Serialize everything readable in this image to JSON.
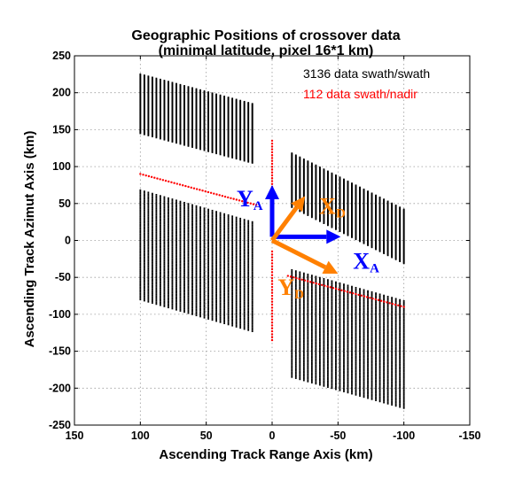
{
  "chart_data": {
    "type": "scatter",
    "title": "Geographic Positions of crossover data",
    "subtitle": "(minimal latitude, pixel 16*1 km)",
    "xlabel": "Ascending Track Range Axis (km)",
    "ylabel": "Ascending Track Azimut Axis (km)",
    "xlim": [
      150,
      -150
    ],
    "ylim": [
      -250,
      250
    ],
    "x_reversed": true,
    "grid": true,
    "xticks": [
      "150",
      "100",
      "50",
      "0",
      "-50",
      "-100",
      "-150"
    ],
    "yticks": [
      "250",
      "200",
      "150",
      "100",
      "50",
      "0",
      "-50",
      "-100",
      "-150",
      "-200",
      "-250"
    ],
    "legend_position": "top-right",
    "series": [
      {
        "name": "3136 data swath/swath",
        "color": "#000000",
        "marker": "dot",
        "regions": [
          {
            "corners": [
              [
                100,
                225
              ],
              [
                15,
                185
              ],
              [
                15,
                105
              ],
              [
                100,
                145
              ]
            ]
          },
          {
            "corners": [
              [
                100,
                68
              ],
              [
                15,
                25
              ],
              [
                15,
                -120
              ],
              [
                100,
                -80
              ]
            ]
          },
          {
            "corners": [
              [
                -15,
                118
              ],
              [
                -100,
                42
              ],
              [
                -100,
                -30
              ],
              [
                -15,
                45
              ]
            ]
          },
          {
            "corners": [
              [
                -15,
                -40
              ],
              [
                -100,
                -82
              ],
              [
                -100,
                -228
              ],
              [
                -15,
                -185
              ]
            ]
          }
        ]
      },
      {
        "name": "112 data swath/nadir",
        "color": "#ff0000",
        "marker": "dot",
        "lines": [
          {
            "from": [
              100,
              90
            ],
            "to": [
              12,
              48
            ]
          },
          {
            "from": [
              -12,
              -48
            ],
            "to": [
              -100,
              -90
            ]
          },
          {
            "from": [
              0,
              135
            ],
            "to": [
              0,
              10
            ]
          },
          {
            "from": [
              0,
              -15
            ],
            "to": [
              0,
              -135
            ]
          }
        ]
      }
    ],
    "annotations": [
      {
        "label": "Y",
        "subscript": "A",
        "color": "#0000ff",
        "from": [
          0,
          5
        ],
        "to": [
          0,
          75
        ]
      },
      {
        "label": "X",
        "subscript": "A",
        "color": "#0000ff",
        "from": [
          0,
          5
        ],
        "to": [
          -52,
          5
        ]
      },
      {
        "label": "X",
        "subscript": "D",
        "color": "#ff8000",
        "from": [
          0,
          0
        ],
        "to": [
          -25,
          60
        ]
      },
      {
        "label": "Y",
        "subscript": "D",
        "color": "#ff8000",
        "from": [
          0,
          0
        ],
        "to": [
          -50,
          -45
        ]
      }
    ]
  }
}
